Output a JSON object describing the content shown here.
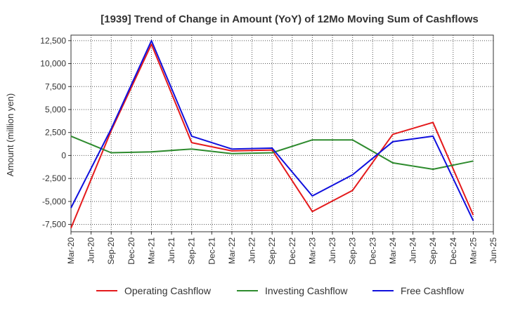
{
  "chart_data": {
    "type": "line",
    "title": "[1939]  Trend of Change in Amount (YoY) of 12Mo Moving Sum of Cashflows",
    "xlabel": "",
    "ylabel": "Amount (million yen)",
    "ylim": [
      -8300,
      13100
    ],
    "yticks": [
      12500,
      10000,
      7500,
      5000,
      2500,
      0,
      -2500,
      -5000,
      -7500
    ],
    "ytick_labels": [
      "12,500",
      "10,000",
      "7,500",
      "5,000",
      "2,500",
      "0",
      "-2,500",
      "-5,000",
      "-7,500"
    ],
    "categories": [
      "Mar-20",
      "Jun-20",
      "Sep-20",
      "Dec-20",
      "Mar-21",
      "Jun-21",
      "Sep-21",
      "Dec-21",
      "Mar-22",
      "Jun-22",
      "Sep-22",
      "Dec-22",
      "Mar-23",
      "Jun-23",
      "Sep-23",
      "Dec-23",
      "Mar-24",
      "Jun-24",
      "Sep-24",
      "Dec-24",
      "Mar-25",
      "Jun-25"
    ],
    "grid": true,
    "legend_position": "bottom",
    "series": [
      {
        "name": "Operating Cashflow",
        "color": "#e41a1c",
        "values": [
          -7900,
          null,
          2700,
          null,
          12100,
          null,
          1400,
          null,
          500,
          null,
          600,
          null,
          -6100,
          null,
          -3800,
          null,
          2300,
          null,
          3600,
          null,
          -6500,
          null
        ]
      },
      {
        "name": "Investing Cashflow",
        "color": "#2e8b2e",
        "values": [
          2100,
          null,
          300,
          null,
          400,
          null,
          700,
          null,
          200,
          null,
          300,
          null,
          1700,
          null,
          1700,
          null,
          -800,
          null,
          -1500,
          null,
          -600,
          null
        ]
      },
      {
        "name": "Free Cashflow",
        "color": "#1010dd",
        "values": [
          -5700,
          null,
          2900,
          null,
          12500,
          null,
          2100,
          null,
          700,
          null,
          800,
          null,
          -4400,
          null,
          -2100,
          null,
          1500,
          null,
          2100,
          null,
          -7100,
          null
        ]
      }
    ]
  }
}
